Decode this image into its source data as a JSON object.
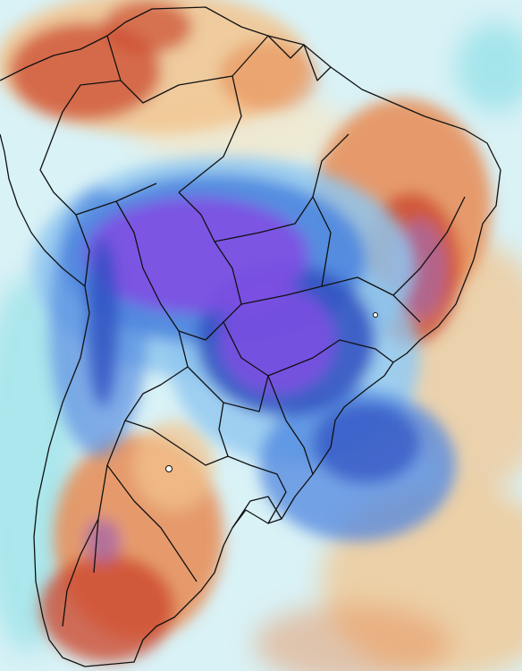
{
  "map": {
    "kind": "temperature-anomaly",
    "region": "South America",
    "palette": {
      "ocean_light": "#d9f2f6",
      "cyan": "#9fe3ea",
      "cold_light": "#8fc6ef",
      "cold_mid": "#4f86df",
      "cold_deep": "#2f4fc0",
      "cold_core": "#7f4fe3",
      "cold_extreme": "#9d63ea",
      "warm_pale": "#f7e6c4",
      "warm_light": "#f2c48e",
      "warm_mid": "#e78b54",
      "warm_deep": "#cc4a2f",
      "warm_extreme": "#a86aa6",
      "border": "#111111"
    },
    "icons": {
      "coastline": "coastline-line",
      "borders": "border-line"
    }
  }
}
